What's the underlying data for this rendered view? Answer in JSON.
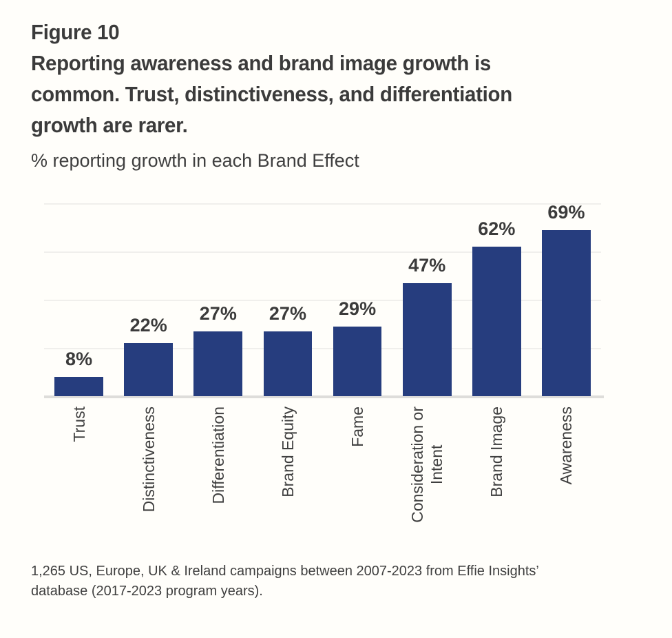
{
  "header": {
    "figure_label": "Figure 10",
    "title": "Reporting awareness and brand image growth is\ncommon. Trust, distinctiveness, and differentiation\ngrowth are rarer.",
    "subtitle": "% reporting growth in each Brand Effect"
  },
  "chart_data": {
    "type": "bar",
    "title": "% reporting growth in each Brand Effect",
    "categories": [
      "Trust",
      "Distinctiveness",
      "Differentiation",
      "Brand Equity",
      "Fame",
      "Consideration or\nIntent",
      "Brand Image",
      "Awareness"
    ],
    "values": [
      8,
      22,
      27,
      27,
      29,
      47,
      62,
      69
    ],
    "value_labels": [
      "8%",
      "22%",
      "27%",
      "27%",
      "29%",
      "47%",
      "62%",
      "69%"
    ],
    "xlabel": "",
    "ylabel": "",
    "ylim": [
      0,
      80
    ],
    "gridline_step": 20,
    "grid": true,
    "legend": false,
    "bar_color": "#263d7e",
    "value_label_color": "#3b3b3b",
    "axis_label_rotation": -90
  },
  "footer": {
    "note": "1,265 US, Europe, UK & Ireland campaigns between 2007-2023 from Effie Insights’\ndatabase  (2017-2023 program years)."
  }
}
